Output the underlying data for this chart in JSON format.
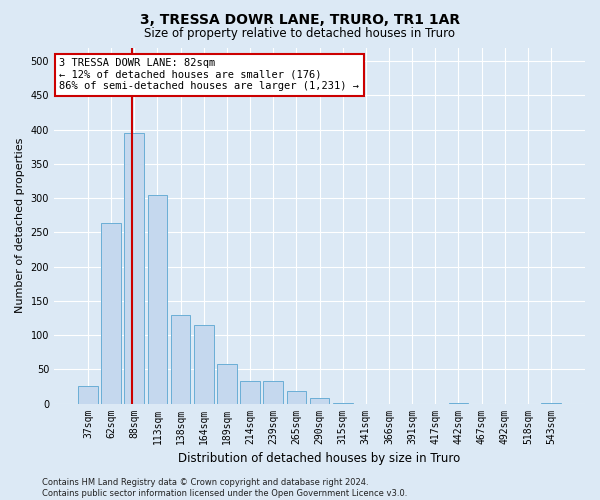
{
  "title": "3, TRESSA DOWR LANE, TRURO, TR1 1AR",
  "subtitle": "Size of property relative to detached houses in Truro",
  "xlabel": "Distribution of detached houses by size in Truro",
  "ylabel": "Number of detached properties",
  "categories": [
    "37sqm",
    "62sqm",
    "88sqm",
    "113sqm",
    "138sqm",
    "164sqm",
    "189sqm",
    "214sqm",
    "239sqm",
    "265sqm",
    "290sqm",
    "315sqm",
    "341sqm",
    "366sqm",
    "391sqm",
    "417sqm",
    "442sqm",
    "467sqm",
    "492sqm",
    "518sqm",
    "543sqm"
  ],
  "values": [
    26,
    263,
    395,
    305,
    130,
    115,
    58,
    33,
    33,
    18,
    8,
    1,
    0,
    0,
    0,
    0,
    1,
    0,
    0,
    0,
    1
  ],
  "bar_color": "#c5d8ee",
  "bar_edge_color": "#6aaed6",
  "vline_x": 1.88,
  "vline_color": "#cc0000",
  "annotation_text": "3 TRESSA DOWR LANE: 82sqm\n← 12% of detached houses are smaller (176)\n86% of semi-detached houses are larger (1,231) →",
  "annotation_box_color": "#ffffff",
  "annotation_box_edge": "#cc0000",
  "ylim": [
    0,
    520
  ],
  "yticks": [
    0,
    50,
    100,
    150,
    200,
    250,
    300,
    350,
    400,
    450,
    500
  ],
  "bg_color": "#dce9f5",
  "plot_bg_color": "#dce9f5",
  "footer": "Contains HM Land Registry data © Crown copyright and database right 2024.\nContains public sector information licensed under the Open Government Licence v3.0.",
  "title_fontsize": 10,
  "subtitle_fontsize": 8.5,
  "ylabel_fontsize": 8,
  "xlabel_fontsize": 8.5,
  "tick_fontsize": 7,
  "footer_fontsize": 6,
  "annot_fontsize": 7.5
}
